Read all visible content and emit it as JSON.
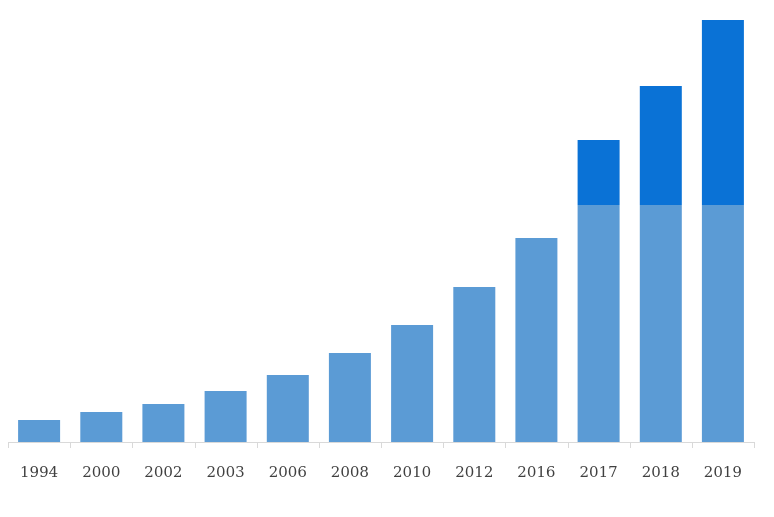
{
  "chart_data": {
    "type": "bar",
    "stacked": true,
    "categories": [
      "1994",
      "2000",
      "2002",
      "2003",
      "2006",
      "2008",
      "2010",
      "2012",
      "2016",
      "2017",
      "2018",
      "2019"
    ],
    "series": [
      {
        "values": [
          22,
          30,
          38,
          51,
          67,
          89,
          117,
          155,
          204,
          237,
          237,
          237
        ]
      },
      {
        "values": [
          0,
          0,
          0,
          0,
          0,
          0,
          0,
          0,
          0,
          65,
          119,
          185
        ]
      }
    ],
    "colors": [
      "#5b9bd5",
      "#0a72d6",
      "#d9d9d9"
    ],
    "ylim": [
      0,
      424
    ],
    "grid": false,
    "legend": "none",
    "title": "",
    "xlabel": "",
    "ylabel": ""
  }
}
